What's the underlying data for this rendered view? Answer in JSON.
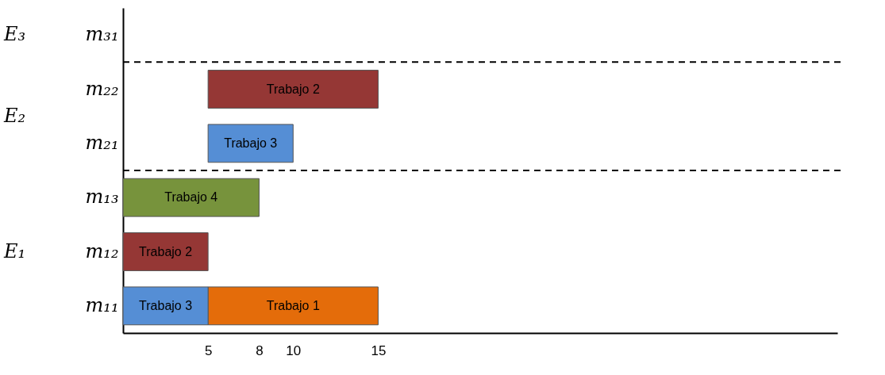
{
  "chart_data": {
    "type": "bar",
    "orientation": "horizontal",
    "categories": [
      "m₃₁",
      "m₂₂",
      "m₂₁",
      "m₁₃",
      "m₁₂",
      "m₁₁"
    ],
    "series": [
      {
        "name": "Trabajo 1",
        "color": "#e46c0a",
        "values": [
          null,
          null,
          null,
          null,
          null,
          10
        ],
        "base": [
          null,
          null,
          null,
          null,
          null,
          5
        ]
      },
      {
        "name": "Trabajo 2",
        "color": "#953735",
        "values": [
          null,
          10,
          null,
          null,
          5,
          null
        ],
        "base": [
          null,
          5,
          null,
          null,
          0,
          null
        ]
      },
      {
        "name": "Trabajo 3",
        "color": "#558ed5",
        "values": [
          null,
          null,
          5,
          null,
          null,
          5
        ],
        "base": [
          null,
          null,
          5,
          null,
          null,
          0
        ]
      },
      {
        "name": "Trabajo 4",
        "color": "#77933c",
        "values": [
          null,
          null,
          null,
          8,
          null,
          null
        ],
        "base": [
          null,
          null,
          null,
          0,
          null,
          null
        ]
      }
    ],
    "xlim": [
      0,
      42
    ],
    "xticks": [
      5,
      8,
      10,
      15
    ],
    "grid": false,
    "annotations": [
      "E₃",
      "E₂",
      "E₁"
    ]
  }
}
